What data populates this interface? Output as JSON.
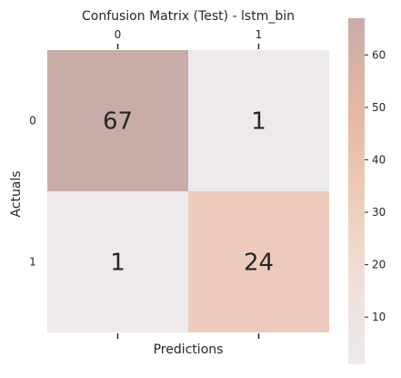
{
  "chart_data": {
    "type": "heatmap",
    "title": "Confusion Matrix (Test) - lstm_bin",
    "xlabel": "Predictions",
    "ylabel": "Actuals",
    "x_categories": [
      "0",
      "1"
    ],
    "y_categories": [
      "0",
      "1"
    ],
    "values": [
      [
        67,
        1
      ],
      [
        1,
        24
      ]
    ],
    "colorbar": {
      "range": [
        1,
        67
      ],
      "ticks": [
        10,
        20,
        30,
        40,
        50,
        60
      ],
      "tick_labels": [
        "10",
        "20",
        "30",
        "40",
        "50",
        "60"
      ]
    },
    "colors": {
      "low": "#eee9ec",
      "mid": "#ecc0a8",
      "high": "#c9aca7"
    }
  }
}
